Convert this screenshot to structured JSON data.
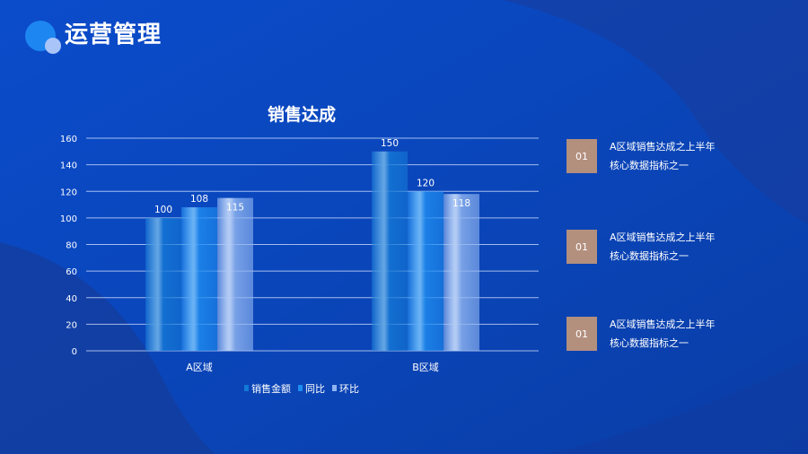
{
  "page": {
    "title": "运营管理",
    "colors": {
      "background": "#0a45b8",
      "accent_badge": "#b38f7e"
    }
  },
  "chart_data": {
    "type": "bar",
    "title": "销售达成",
    "categories": [
      "A区域",
      "B区域"
    ],
    "series": [
      {
        "name": "销售金额",
        "values": [
          100,
          150
        ],
        "color": "#1478d6"
      },
      {
        "name": "同比",
        "values": [
          108,
          120
        ],
        "color": "#1e8cf0"
      },
      {
        "name": "环比",
        "values": [
          115,
          118
        ],
        "color": "#8fb4f0"
      }
    ],
    "ylim": [
      0,
      160
    ],
    "yticks": [
      0,
      20,
      40,
      60,
      80,
      100,
      120,
      140,
      160
    ],
    "grid": true,
    "legend": "bottom"
  },
  "info_items": [
    {
      "badge": "01",
      "line1": "A区域销售达成之上半年",
      "line2": "核心数据指标之一"
    },
    {
      "badge": "01",
      "line1": "A区域销售达成之上半年",
      "line2": "核心数据指标之一"
    },
    {
      "badge": "01",
      "line1": "A区域销售达成之上半年",
      "line2": "核心数据指标之一"
    }
  ]
}
